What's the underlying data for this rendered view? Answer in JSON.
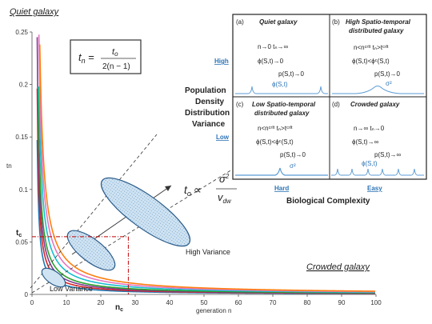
{
  "figure": {
    "top_left_label": "Quiet galaxy",
    "bottom_right_label": "Crowded galaxy",
    "formula_box": {
      "lhs": "t",
      "lhs_sub": "n",
      "numer": "t",
      "numer_sub": "o",
      "denom": "2(n − 1)"
    },
    "proportional": {
      "lhs": "t",
      "lhs_sub": "o",
      "rel": "∝",
      "numer": "σ",
      "numer_sup": "2",
      "denom": "v",
      "denom_sub": "dw"
    },
    "high_variance": "High Variance",
    "low_variance": "Low Variance",
    "tc_label": "t",
    "tc_sub": "c",
    "nc_label": "n",
    "nc_sub": "c"
  },
  "chart_data": {
    "type": "line",
    "xlabel": "generation n",
    "ylabel": "tn",
    "xlim": [
      0,
      100
    ],
    "ylim": [
      0,
      0.25
    ],
    "x_ticks": [
      "0",
      "10",
      "20",
      "30",
      "40",
      "50",
      "60",
      "70",
      "80",
      "90",
      "100"
    ],
    "y_ticks": [
      "0",
      "0.05",
      "0.1",
      "0.15",
      "0.2",
      "0.25"
    ],
    "tc": 0.055,
    "nc": 28,
    "series": [
      {
        "to": 0.15,
        "color": "#1f77b4"
      },
      {
        "to": 0.2,
        "color": "#d62728"
      },
      {
        "to": 0.25,
        "color": "#7f3c8d"
      },
      {
        "to": 0.3,
        "color": "#2ca02c"
      },
      {
        "to": 0.4,
        "color": "#17becf"
      },
      {
        "to": 0.5,
        "color": "#e377c2"
      },
      {
        "to": 0.6,
        "color": "#ff7f0e"
      }
    ]
  },
  "inset": {
    "row_labels": [
      "High",
      "Low"
    ],
    "middle_label": [
      "Population",
      "Density",
      "Distribution",
      "Variance"
    ],
    "col_labels": [
      "Hard",
      "Easy"
    ],
    "bottom_label": "Biological Complexity",
    "panels": [
      {
        "id": "(a)",
        "title": [
          "Quiet galaxy"
        ],
        "lines": [
          "n→0        tₙ→∞",
          "ϕ(S,t)→0",
          "p(S,t)→0"
        ],
        "blue": "ϕ(S,t)"
      },
      {
        "id": "(b)",
        "title": [
          "High Spatio-temporal",
          "distributed galaxy"
        ],
        "lines": [
          "n<nᶜʳᴵᵗ     tₙ>tᶜʳᴵᵗ",
          "ϕ(S,t)<ϕᶜ(S,t)",
          "p(S,t)→0"
        ],
        "blue": "σ²"
      },
      {
        "id": "(c)",
        "title": [
          "Low Spatio-temporal",
          "distributed galaxy"
        ],
        "lines": [
          "n<nᶜʳᴵᵗ     tₙ>tᶜʳᴵᵗ",
          "ϕ(S,t)<ϕᶜ(S,t)",
          "p(S,t)→0"
        ],
        "blue": "σ²"
      },
      {
        "id": "(d)",
        "title": [
          "Crowded galaxy"
        ],
        "lines": [
          "n→∞        tₙ→0",
          "ϕ(S,t)→∞",
          "p(S,t)→∞"
        ],
        "blue": "ϕ(S,t)"
      }
    ]
  }
}
